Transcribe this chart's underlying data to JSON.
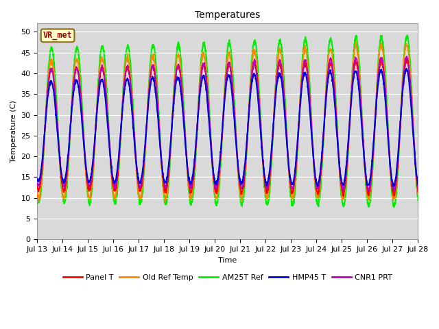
{
  "title": "Temperatures",
  "xlabel": "Time",
  "ylabel": "Temperature (C)",
  "ylim": [
    0,
    52
  ],
  "yticks": [
    0,
    5,
    10,
    15,
    20,
    25,
    30,
    35,
    40,
    45,
    50
  ],
  "background_color": "#d9d9d9",
  "annotation_text": "VR_met",
  "annotation_box_color": "#ffffcc",
  "annotation_box_edge": "#8b6914",
  "series_colors": {
    "Panel T": "#ff0000",
    "Old Ref Temp": "#ff8800",
    "AM25T Ref": "#00ee00",
    "HMP45 T": "#0000dd",
    "CNR1 PRT": "#bb00bb"
  },
  "series_linewidths": {
    "Panel T": 1.3,
    "Old Ref Temp": 1.3,
    "AM25T Ref": 1.5,
    "HMP45 T": 1.5,
    "CNR1 PRT": 1.3
  },
  "title_fontsize": 10,
  "axis_label_fontsize": 8,
  "tick_fontsize": 8,
  "legend_fontsize": 8
}
